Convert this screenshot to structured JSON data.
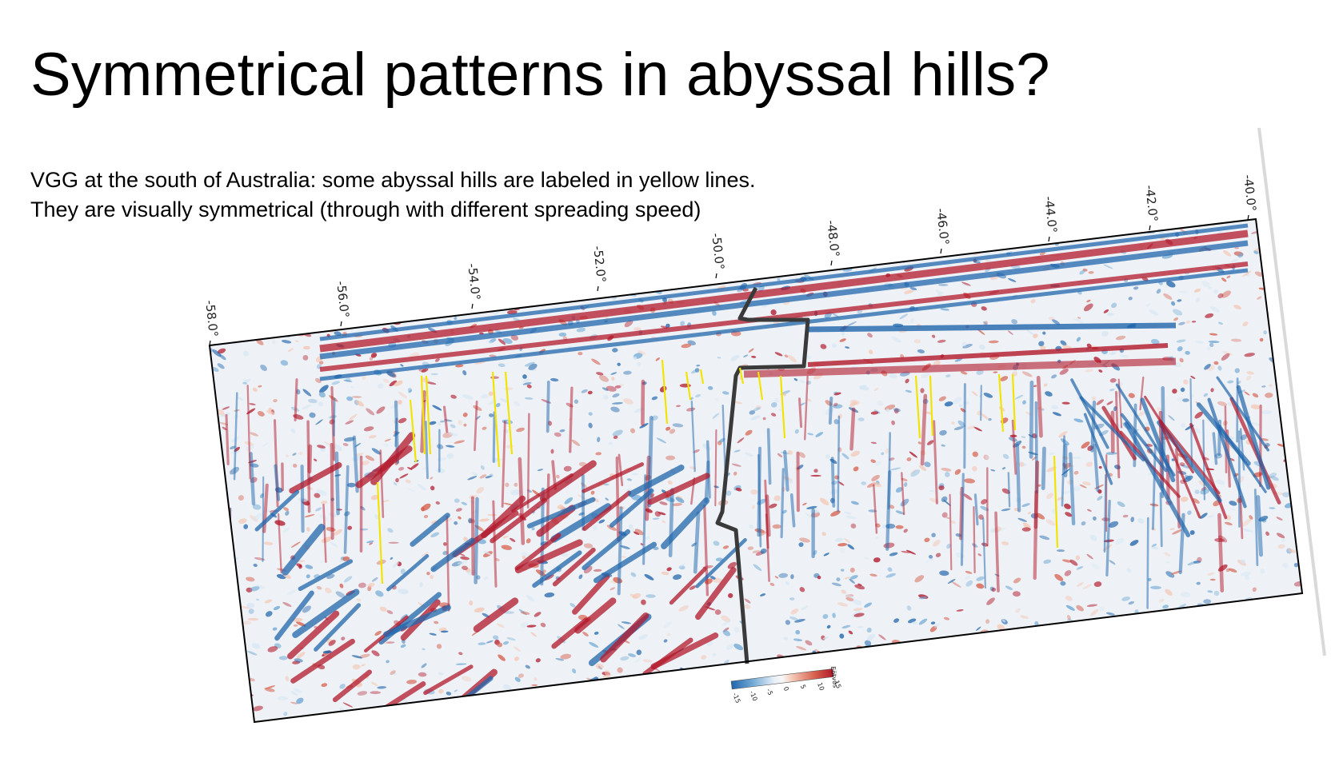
{
  "slide": {
    "title": "Symmetrical patterns in abyssal hills?",
    "caption_line1": "VGG at the south of Australia: some abyssal hills are labeled in yellow lines.",
    "caption_line2": "They are visually symmetrical (through with different spreading speed)"
  },
  "map": {
    "longitude_ticks": [
      "-58.0°",
      "-56.0°",
      "-54.0°",
      "-52.0°",
      "-50.0°",
      "-48.0°",
      "-46.0°",
      "-44.0°",
      "-42.0°",
      "-40.0°"
    ],
    "colorbar": {
      "unit": "Eötvös",
      "ticks": [
        "-15",
        "-10",
        "-5",
        "0",
        "5",
        "10",
        "15"
      ],
      "min": -15,
      "max": 15,
      "colors": [
        "#2166ac",
        "#6ea7d4",
        "#d6e6f3",
        "#f7f7f7",
        "#f4c6b4",
        "#d6604d",
        "#b2182b"
      ]
    },
    "annotation_color": "#f2e400",
    "boundary_color": "#3a3a3a"
  }
}
